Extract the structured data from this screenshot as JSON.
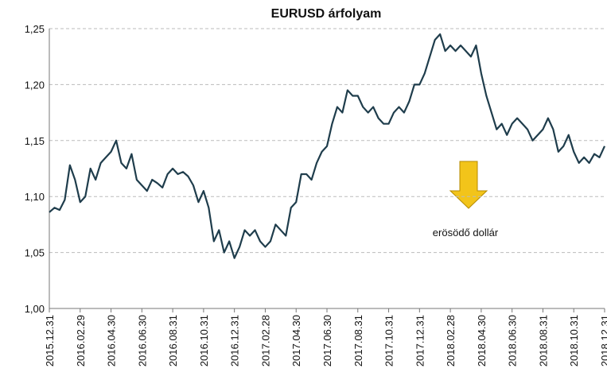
{
  "chart_data": {
    "type": "line",
    "title": "EURUSD árfolyam",
    "annotation": "erösödő dollár",
    "categories": [
      "2015.12.31",
      null,
      null,
      null,
      null,
      null,
      "2016.02.29",
      null,
      null,
      null,
      null,
      null,
      "2016.04.30",
      null,
      null,
      null,
      null,
      null,
      "2016.06.30",
      null,
      null,
      null,
      null,
      null,
      "2016.08.31",
      null,
      null,
      null,
      null,
      null,
      "2016.10.31",
      null,
      null,
      null,
      null,
      null,
      "2016.12.31",
      null,
      null,
      null,
      null,
      null,
      "2017.02.28",
      null,
      null,
      null,
      null,
      null,
      "2017.04.30",
      null,
      null,
      null,
      null,
      null,
      "2017.06.30",
      null,
      null,
      null,
      null,
      null,
      "2017.08.31",
      null,
      null,
      null,
      null,
      null,
      "2017.10.31",
      null,
      null,
      null,
      null,
      null,
      "2017.12.31",
      null,
      null,
      null,
      null,
      null,
      "2018.02.28",
      null,
      null,
      null,
      null,
      null,
      "2018.04.30",
      null,
      null,
      null,
      null,
      null,
      "2018.06.30",
      null,
      null,
      null,
      null,
      null,
      "2018.08.31",
      null,
      null,
      null,
      null,
      null,
      "2018.10.31",
      null,
      null,
      null,
      null,
      null,
      "2018.12.31"
    ],
    "series": [
      {
        "name": "EURUSD",
        "color": "#1f3d4c",
        "values": [
          1.086,
          1.09,
          1.088,
          1.097,
          1.128,
          1.115,
          1.095,
          1.1,
          1.125,
          1.115,
          1.13,
          1.135,
          1.14,
          1.15,
          1.13,
          1.125,
          1.138,
          1.115,
          1.11,
          1.105,
          1.115,
          1.112,
          1.108,
          1.12,
          1.125,
          1.12,
          1.122,
          1.118,
          1.11,
          1.095,
          1.105,
          1.09,
          1.06,
          1.07,
          1.05,
          1.06,
          1.045,
          1.055,
          1.07,
          1.065,
          1.07,
          1.06,
          1.055,
          1.06,
          1.075,
          1.07,
          1.065,
          1.09,
          1.095,
          1.12,
          1.12,
          1.115,
          1.13,
          1.14,
          1.145,
          1.165,
          1.18,
          1.175,
          1.195,
          1.19,
          1.19,
          1.18,
          1.175,
          1.18,
          1.17,
          1.165,
          1.165,
          1.175,
          1.18,
          1.175,
          1.185,
          1.2,
          1.2,
          1.21,
          1.225,
          1.24,
          1.245,
          1.23,
          1.235,
          1.23,
          1.235,
          1.23,
          1.225,
          1.235,
          1.21,
          1.19,
          1.175,
          1.16,
          1.165,
          1.155,
          1.165,
          1.17,
          1.165,
          1.16,
          1.15,
          1.155,
          1.16,
          1.17,
          1.16,
          1.14,
          1.145,
          1.155,
          1.14,
          1.13,
          1.135,
          1.13,
          1.138,
          1.135,
          1.145
        ]
      }
    ],
    "ylim": [
      1.0,
      1.25
    ],
    "yticks": [
      {
        "value": 1.0,
        "label": "1,00"
      },
      {
        "value": 1.05,
        "label": "1,05"
      },
      {
        "value": 1.1,
        "label": "1,10"
      },
      {
        "value": 1.15,
        "label": "1,15"
      },
      {
        "value": 1.2,
        "label": "1,20"
      },
      {
        "value": 1.25,
        "label": "1,25"
      }
    ],
    "grid": true
  }
}
